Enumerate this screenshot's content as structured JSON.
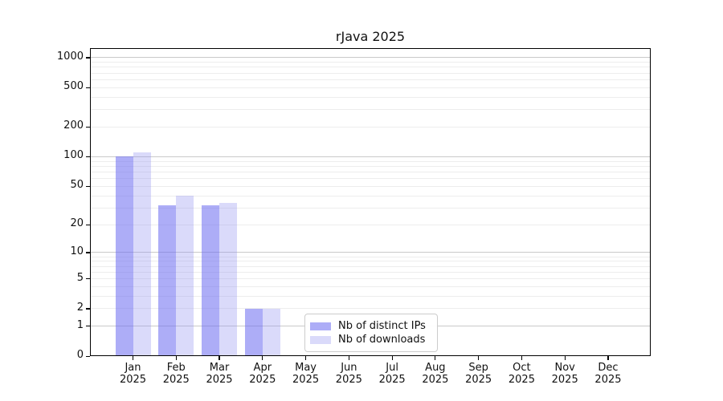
{
  "title": "rJava 2025",
  "chart_data": {
    "type": "bar",
    "title": "rJava 2025",
    "xlabel": "",
    "ylabel": "",
    "yscale": "log1p",
    "grid": "horizontal, log minor gridlines on, decade lines emphasized",
    "legend_position": "inside bottom-center",
    "y_ticks": [
      0,
      1,
      2,
      5,
      10,
      20,
      50,
      100,
      200,
      500,
      1000
    ],
    "ylim": [
      0,
      1200
    ],
    "categories": [
      "Jan 2025",
      "Feb 2025",
      "Mar 2025",
      "Apr 2025",
      "May 2025",
      "Jun 2025",
      "Jul 2025",
      "Aug 2025",
      "Sep 2025",
      "Oct 2025",
      "Nov 2025",
      "Dec 2025"
    ],
    "month_labels": [
      "Jan",
      "Feb",
      "Mar",
      "Apr",
      "May",
      "Jun",
      "Jul",
      "Aug",
      "Sep",
      "Oct",
      "Nov",
      "Dec"
    ],
    "year_label": "2025",
    "series": [
      {
        "name": "Nb of distinct IPs",
        "color": "rgba(105,105,240,0.55)",
        "color_hex_on_white": "#aaaaf8",
        "values": [
          101,
          32,
          32,
          2,
          0,
          0,
          0,
          0,
          0,
          0,
          0,
          0
        ]
      },
      {
        "name": "Nb of downloads",
        "color": "rgba(150,150,242,0.35)",
        "color_hex_on_white": "#dcdcf8",
        "values": [
          110,
          40,
          34,
          2,
          0,
          0,
          0,
          0,
          0,
          0,
          0,
          0
        ]
      }
    ]
  },
  "legend": {
    "items": [
      {
        "label": "Nb of distinct IPs"
      },
      {
        "label": "Nb of downloads"
      }
    ]
  },
  "colors": {
    "bar_dark": "rgba(105,105,240,0.55)",
    "bar_light": "rgba(150,150,242,0.35)",
    "grid_minor": "#ededed",
    "grid_major": "#c9c9c9",
    "axis": "#000000",
    "text": "#111111"
  }
}
